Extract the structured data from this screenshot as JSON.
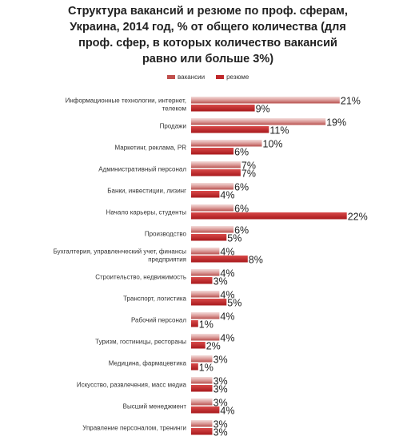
{
  "chart_data": {
    "type": "bar",
    "orientation": "horizontal",
    "title": "Структура вакансий и резюме по проф. сферам, Украина, 2014 год, % от общего количества (для проф. сфер, в которых количество вакансий равно или больше 3%)",
    "title_lines": [
      "Структура вакансий и резюме по проф. сферам,",
      "Украина, 2014 год, % от общего количества (для",
      "проф. сфер, в которых количество вакансий",
      "равно или больше 3%)"
    ],
    "categories": [
      [
        "Информационные технологии, интернет,",
        "телеком"
      ],
      [
        "Продажи"
      ],
      [
        "Маркетинг, реклама, PR"
      ],
      [
        "Административный персонал"
      ],
      [
        "Банки, инвестиции, лизинг"
      ],
      [
        "Начало карьеры, студенты"
      ],
      [
        "Производство"
      ],
      [
        "Бухгалтерия, управленческий учет, финансы",
        "предприятия"
      ],
      [
        "Строительство, недвижимость"
      ],
      [
        "Транспорт, логистика"
      ],
      [
        "Рабочий персонал"
      ],
      [
        "Туризм, гостиницы, рестораны"
      ],
      [
        "Медицина, фармацевтика"
      ],
      [
        "Искусство, развлечения, масс медиа"
      ],
      [
        "Высший менеджмент"
      ],
      [
        "Управление персоналом, тренинги"
      ]
    ],
    "series": [
      {
        "name": "вакансии",
        "color": "#c0504d",
        "gradient_light": "#f2d5d4",
        "values": [
          21,
          19,
          10,
          7,
          6,
          6,
          6,
          4,
          4,
          4,
          4,
          4,
          3,
          3,
          3,
          3
        ]
      },
      {
        "name": "резюме",
        "color": "#c0282b",
        "gradient_light": "#c0282b",
        "values": [
          9,
          11,
          6,
          7,
          4,
          22,
          5,
          8,
          3,
          5,
          1,
          2,
          1,
          3,
          4,
          3
        ]
      }
    ],
    "value_suffix": "%",
    "xlim": [
      0,
      22
    ],
    "legend_position": "top",
    "grid": false
  }
}
